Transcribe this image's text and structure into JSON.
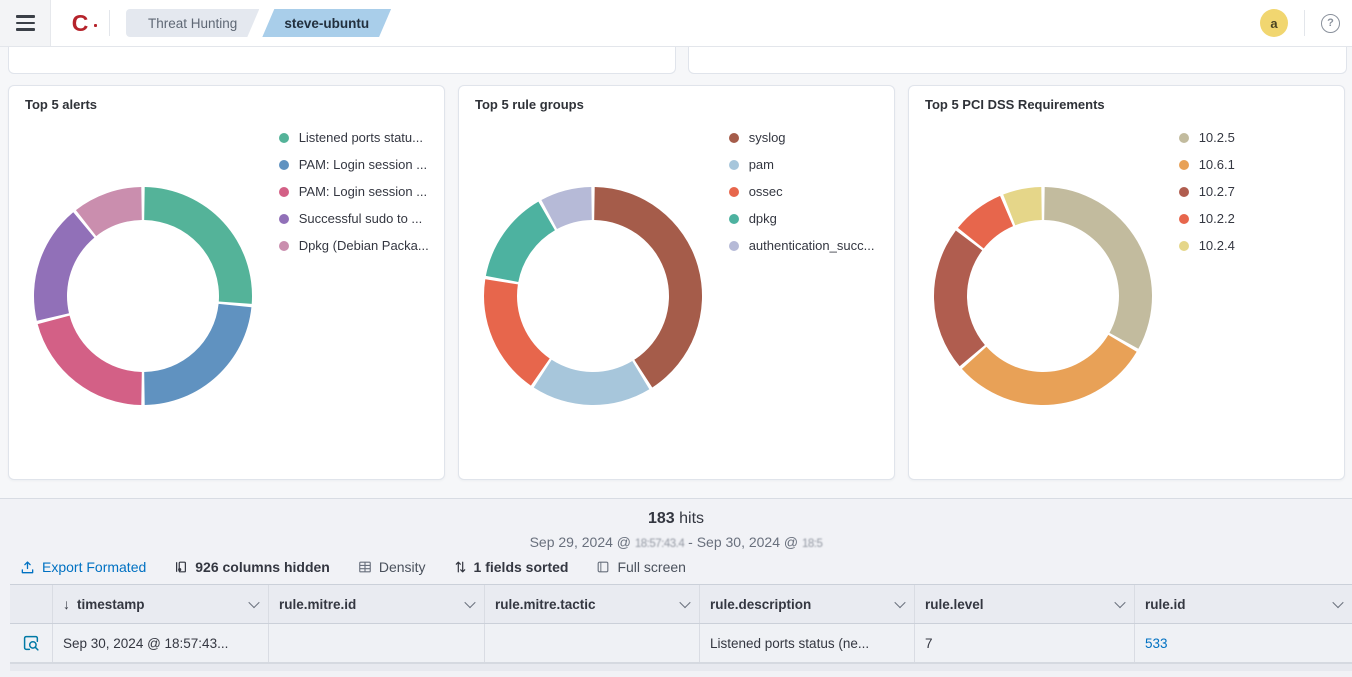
{
  "header": {
    "logo_text": "C",
    "breadcrumbs": [
      {
        "label": "Threat Hunting"
      },
      {
        "label": "steve-ubuntu"
      }
    ],
    "avatar_initial": "a",
    "help_label": "?"
  },
  "chart_data": [
    {
      "type": "donut",
      "title": "Top 5 alerts",
      "legend_position": "right",
      "slices": [
        {
          "label": "Listened ports statu...",
          "percent": 26.4,
          "color": "#54B399"
        },
        {
          "label": "PAM: Login session ...",
          "percent": 23.6,
          "color": "#6092C0"
        },
        {
          "label": "PAM: Login session ...",
          "percent": 21.1,
          "color": "#D36086"
        },
        {
          "label": "Successful sudo to ...",
          "percent": 18.1,
          "color": "#9170B8"
        },
        {
          "label": "Dpkg (Debian Packa...",
          "percent": 10.8,
          "color": "#CA8EAE"
        }
      ]
    },
    {
      "type": "donut",
      "title": "Top 5 rule groups",
      "legend_position": "right",
      "slices": [
        {
          "label": "syslog",
          "percent": 41.1,
          "color": "#A55C4A"
        },
        {
          "label": "pam",
          "percent": 18.3,
          "color": "#A7C6DB"
        },
        {
          "label": "ossec",
          "percent": 18.3,
          "color": "#E7664C"
        },
        {
          "label": "dpkg",
          "percent": 14.2,
          "color": "#4DB2A0"
        },
        {
          "label": "authentication_succ...",
          "percent": 8.1,
          "color": "#B6BAD7"
        }
      ]
    },
    {
      "type": "donut",
      "title": "Top 5 PCI DSS Requirements",
      "legend_position": "right",
      "slices": [
        {
          "label": "10.2.5",
          "percent": 33.3,
          "color": "#C2BB9E"
        },
        {
          "label": "10.6.1",
          "percent": 30.3,
          "color": "#E8A157"
        },
        {
          "label": "10.2.7",
          "percent": 21.9,
          "color": "#B05D4F"
        },
        {
          "label": "10.2.2",
          "percent": 8.3,
          "color": "#E7664C"
        },
        {
          "label": "10.2.4",
          "percent": 6.2,
          "color": "#E5D689"
        }
      ]
    }
  ],
  "hits": {
    "count": "183",
    "unit": "hits"
  },
  "date_range": {
    "start_date": "Sep 29, 2024 @",
    "start_time": "18:57:43.4",
    "separator": "-",
    "end_date": "Sep 30, 2024 @",
    "end_time": "18:5"
  },
  "toolbar": {
    "export": "Export Formated",
    "columns_hidden": "926 columns hidden",
    "density": "Density",
    "fields_sorted": "1 fields sorted",
    "full_screen": "Full screen"
  },
  "table": {
    "columns": [
      {
        "label": "timestamp",
        "sorted": "desc"
      },
      {
        "label": "rule.mitre.id"
      },
      {
        "label": "rule.mitre.tactic"
      },
      {
        "label": "rule.description"
      },
      {
        "label": "rule.level"
      },
      {
        "label": "rule.id"
      }
    ],
    "rows": [
      {
        "timestamp": "Sep 30, 2024 @ 18:57:43...",
        "mitre_id": "",
        "mitre_tactic": "",
        "description": "Listened ports status (ne...",
        "level": "7",
        "rule_id": "533"
      }
    ]
  }
}
